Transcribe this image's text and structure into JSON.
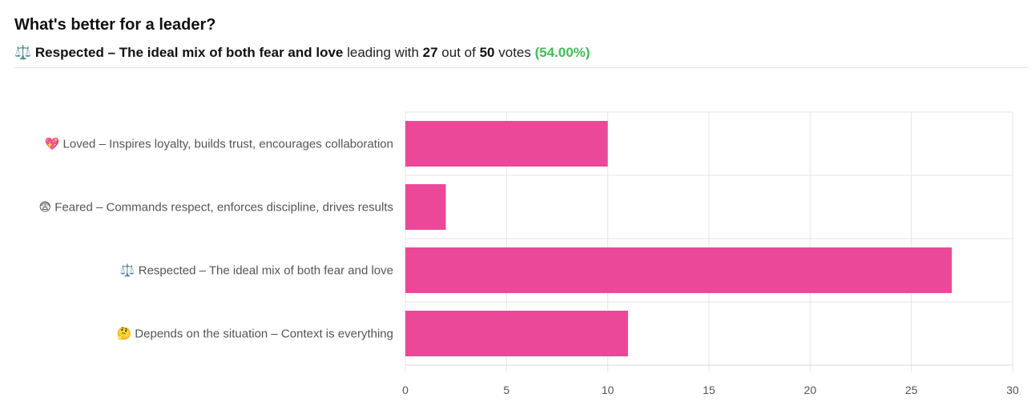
{
  "poll": {
    "title": "What's better for a leader?",
    "leader_icon": "⚖️",
    "leader_label": "Respected – The ideal mix of both fear and love",
    "leading_with_text": "leading with",
    "leader_votes": "27",
    "out_of_text": "out of",
    "total_votes": "50",
    "votes_text": "votes",
    "leader_percent": "(54.00%)"
  },
  "colors": {
    "bar": "#ec4899",
    "percent": "#3dbf55",
    "grid": "#e5e5e5"
  },
  "chart_data": {
    "type": "bar",
    "orientation": "horizontal",
    "categories": [
      "💖  Loved – Inspires loyalty, builds trust, encourages collaboration",
      "😨  Feared – Commands respect, enforces discipline, drives results",
      "⚖️  Respected – The ideal mix of both fear and love",
      "🤔  Depends on the situation – Context is everything"
    ],
    "values": [
      10,
      2,
      27,
      11
    ],
    "xlim": [
      0,
      30
    ],
    "xticks": [
      0,
      5,
      10,
      15,
      20,
      25,
      30
    ],
    "grid": true,
    "legend": "none"
  }
}
